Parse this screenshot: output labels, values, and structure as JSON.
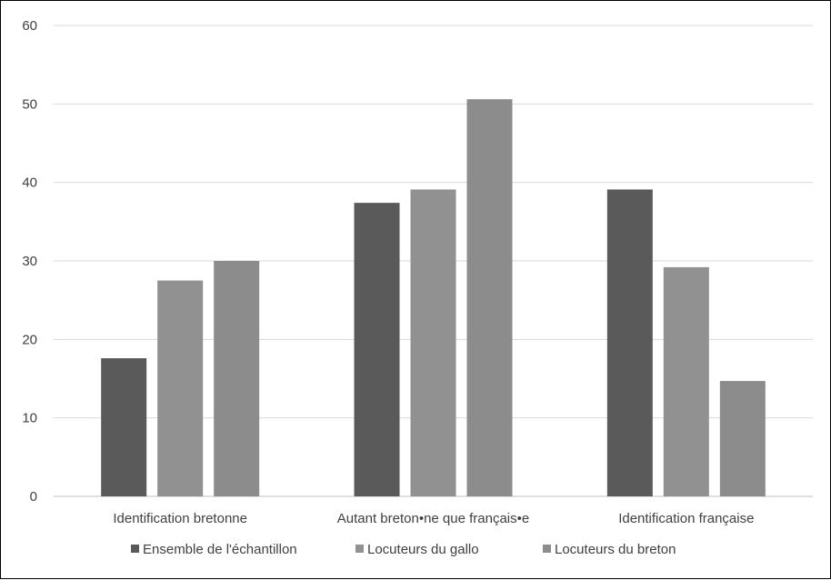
{
  "chart_data": {
    "type": "bar",
    "categories": [
      "Identification bretonne",
      "Autant breton•ne que français•e",
      "Identification française"
    ],
    "series": [
      {
        "name": "Ensemble de l'échantillon",
        "values": [
          17.6,
          37.4,
          39.1
        ]
      },
      {
        "name": "Locuteurs du gallo",
        "values": [
          27.5,
          39.1,
          29.2
        ]
      },
      {
        "name": "Locuteurs du breton",
        "values": [
          30.0,
          50.6,
          14.7
        ]
      }
    ],
    "ylim": [
      0,
      60
    ],
    "yticks": [
      "0",
      "10",
      "20",
      "30",
      "40",
      "50",
      "60"
    ],
    "grid": true,
    "legend_position": "bottom",
    "colors": [
      "#5a5a5a",
      "#919191",
      "#8c8c8c"
    ]
  }
}
